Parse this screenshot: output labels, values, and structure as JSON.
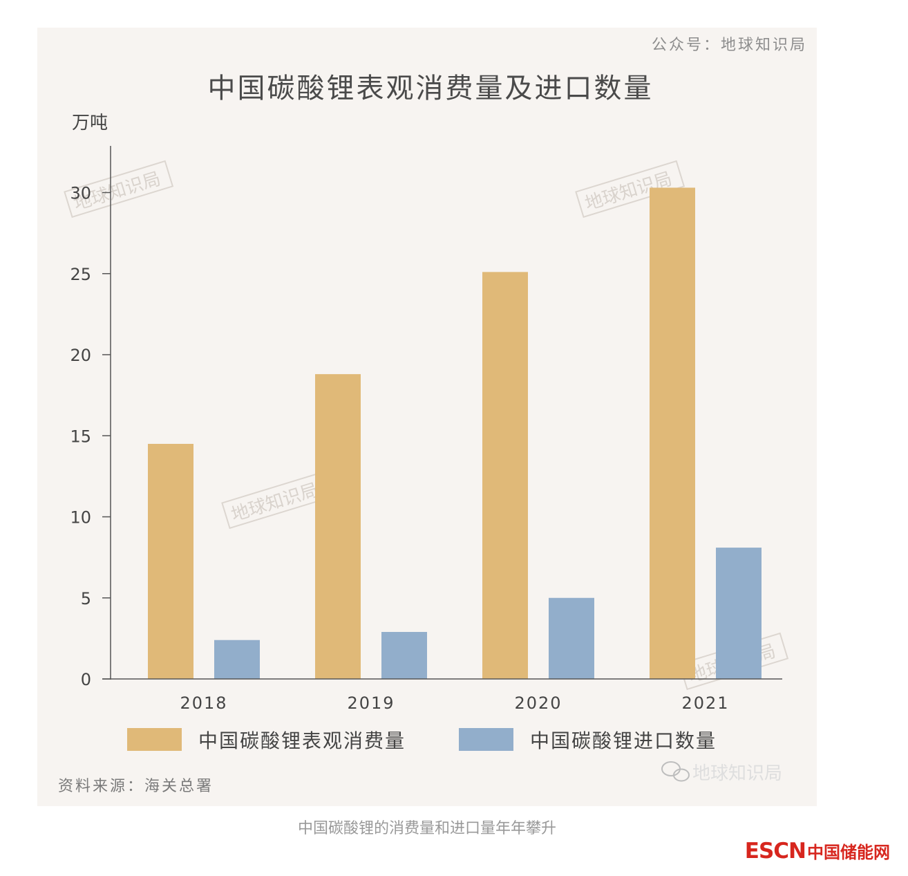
{
  "header": {
    "account": "公众号：地球知识局",
    "title": "中国碳酸锂表观消费量及进口数量"
  },
  "footer": {
    "source": "资料来源：海关总署",
    "logo_text": "地球知识局"
  },
  "watermark_text": "地球知识局",
  "caption": "中国碳酸锂的消费量和进口量年年攀升",
  "brand": {
    "esc": "ESCN",
    "cn": "中国储能网"
  },
  "colors": {
    "consumption": "#e0b978",
    "import": "#92aecb",
    "background": "#f7f4f1",
    "brand_red": "#d7261e"
  },
  "chart_data": {
    "type": "bar",
    "title": "中国碳酸锂表观消费量及进口数量",
    "ylabel": "万吨",
    "xlabel": "",
    "categories": [
      "2018",
      "2019",
      "2020",
      "2021"
    ],
    "series": [
      {
        "name": "中国碳酸锂表观消费量",
        "values": [
          14.5,
          18.8,
          25.1,
          30.3
        ]
      },
      {
        "name": "中国碳酸锂进口数量",
        "values": [
          2.4,
          2.9,
          5.0,
          8.1
        ]
      }
    ],
    "ylim": [
      0,
      32
    ],
    "yticks": [
      0,
      5,
      10,
      15,
      20,
      25,
      30
    ],
    "grid": false,
    "legend": "bottom"
  }
}
